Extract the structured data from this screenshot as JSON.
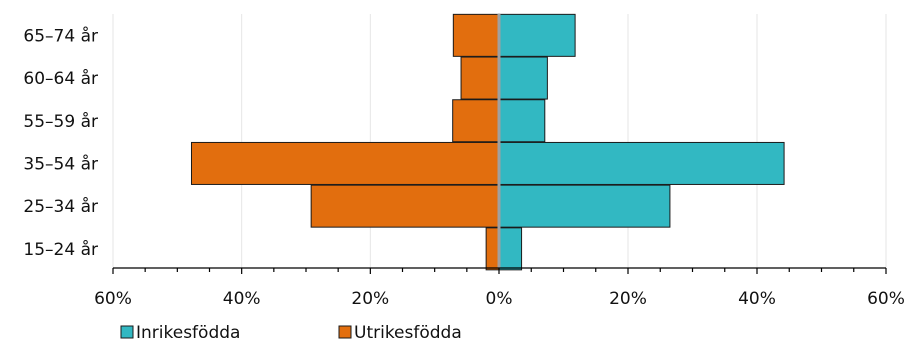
{
  "chart_data": {
    "type": "bar",
    "orientation": "horizontal",
    "layout": "population-pyramid",
    "categories": [
      "65–74 år",
      "60–64 år",
      "55–59 år",
      "35–54 år",
      "25–34 år",
      "15–24 år"
    ],
    "series": [
      {
        "name": "Inrikesfödda",
        "color": "#32b8c2",
        "side": "right",
        "values": [
          11.8,
          7.5,
          7.1,
          44.2,
          26.5,
          3.5
        ]
      },
      {
        "name": "Utrikesfödda",
        "color": "#e26e0e",
        "side": "left",
        "values": [
          7.1,
          5.9,
          7.2,
          47.8,
          29.2,
          2.0
        ]
      }
    ],
    "xlim": [
      -60,
      60
    ],
    "x_ticks": [
      {
        "value": -60,
        "label": "60%"
      },
      {
        "value": -40,
        "label": "40%"
      },
      {
        "value": -20,
        "label": "20%"
      },
      {
        "value": 0,
        "label": "0%"
      },
      {
        "value": 20,
        "label": "20%"
      },
      {
        "value": 40,
        "label": "40%"
      },
      {
        "value": 60,
        "label": "60%"
      }
    ],
    "grid": "vertical",
    "legend_position": "bottom-left",
    "title": "",
    "xlabel": "",
    "ylabel": ""
  }
}
